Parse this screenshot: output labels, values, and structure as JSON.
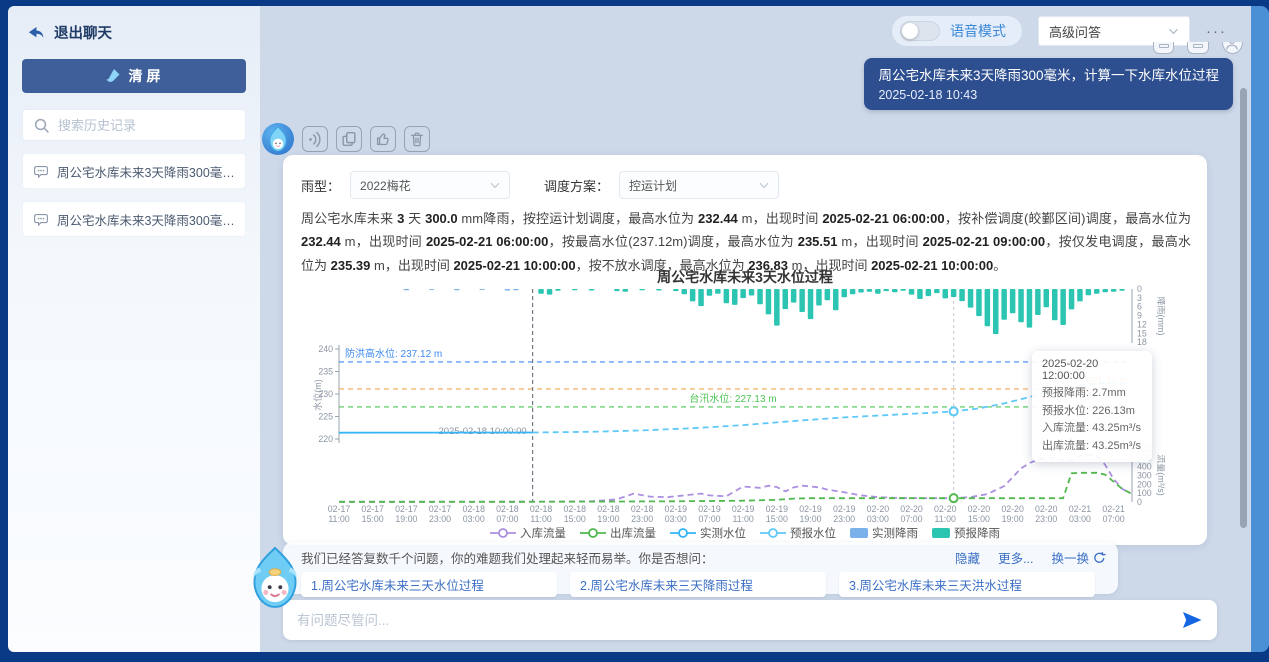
{
  "colors": {
    "frame": "#0a3a86",
    "right_strip": "#4b90d4",
    "main_bg": "#cdd9e9",
    "user_bubble": "#2d4e8f",
    "clear_button": "#3f5f9a",
    "link_blue": "#3b6fc4",
    "voice_label_blue": "#3a87d8",
    "send_blue": "#1565e0"
  },
  "sidebar": {
    "exit_label": "退出聊天",
    "clear_button": "清屏",
    "search_placeholder": "搜索历史记录",
    "history": [
      "周公宅水库未来3天降雨300毫米，...",
      "周公宅水库未来3天降雨300毫米，..."
    ]
  },
  "topbar": {
    "voice_label": "语音模式",
    "mode_select": "高级问答",
    "more": "···"
  },
  "user_message": {
    "text": "周公宅水库未来3天降雨300毫米，计算一下水库水位过程",
    "time": "2025-02-18 10:43"
  },
  "answer": {
    "rain_type_label": "雨型：",
    "rain_type_value": "2022梅花",
    "plan_label": "调度方案：",
    "plan_value": "控运计划",
    "paragraph": [
      {
        "t": "周公宅水库未来 ",
        "b": false
      },
      {
        "t": "3",
        "b": true
      },
      {
        "t": " 天 ",
        "b": false
      },
      {
        "t": "300.0",
        "b": true
      },
      {
        "t": " mm降雨，按控运计划调度，最高水位为 ",
        "b": false
      },
      {
        "t": "232.44",
        "b": true
      },
      {
        "t": " m，出现时间 ",
        "b": false
      },
      {
        "t": "2025-02-21 06:00:00",
        "b": true
      },
      {
        "t": "，按补偿调度(皎鄞区间)调度，最高水位为 ",
        "b": false
      },
      {
        "t": "232.44",
        "b": true
      },
      {
        "t": " m，出现时间 ",
        "b": false
      },
      {
        "t": "2025-02-21 06:00:00",
        "b": true
      },
      {
        "t": "，按最高水位(237.12m)调度，最高水位为 ",
        "b": false
      },
      {
        "t": "235.51",
        "b": true
      },
      {
        "t": " m，出现时间 ",
        "b": false
      },
      {
        "t": "2025-02-21 09:00:00",
        "b": true
      },
      {
        "t": "，按仅发电调度，最高水位为 ",
        "b": false
      },
      {
        "t": "235.39",
        "b": true
      },
      {
        "t": " m，出现时间 ",
        "b": false
      },
      {
        "t": "2025-02-21 10:00:00",
        "b": true
      },
      {
        "t": "，按不放水调度，最高水位为 ",
        "b": false
      },
      {
        "t": "236.83",
        "b": true
      },
      {
        "t": " m，出现时间 ",
        "b": false
      },
      {
        "t": "2025-02-21 10:00:00",
        "b": true
      },
      {
        "t": "。",
        "b": false
      }
    ]
  },
  "tooltip": {
    "title": "2025-02-20 12:00:00",
    "rows": [
      "预报降雨: 2.7mm",
      "预报水位: 226.13m",
      "入库流量: 43.25m³/s",
      "出库流量: 43.25m³/s"
    ]
  },
  "suggestions": {
    "header": "我们已经答复数千个问题，你的难题我们处理起来轻而易举。你是否想问：",
    "links": {
      "hide": "隐藏",
      "more": "更多...",
      "swap": "换一换"
    },
    "items": [
      "1.周公宅水库未来三天水位过程",
      "2.周公宅水库未来三天降雨过程",
      "3.周公宅水库未来三天洪水过程"
    ]
  },
  "input": {
    "placeholder": "有问题尽管问..."
  },
  "chart_data": {
    "type": "mixed",
    "title": "周公宅水库未来3天水位过程",
    "x_hours_domain": [
      0,
      94
    ],
    "x_ticks": [
      "02-17 11:00",
      "02-17 15:00",
      "02-17 19:00",
      "02-17 23:00",
      "02-18 03:00",
      "02-18 07:00",
      "02-18 11:00",
      "02-18 15:00",
      "02-18 19:00",
      "02-18 23:00",
      "02-19 03:00",
      "02-19 07:00",
      "02-19 11:00",
      "02-19 15:00",
      "02-19 19:00",
      "02-19 23:00",
      "02-20 03:00",
      "02-20 07:00",
      "02-20 11:00",
      "02-20 15:00",
      "02-20 19:00",
      "02-20 23:00",
      "02-21 03:00",
      "02-21 07:00"
    ],
    "axes": {
      "level": {
        "label": "水位(m)",
        "min": 220,
        "max": 240,
        "ticks": [
          240,
          235,
          230,
          225,
          220
        ]
      },
      "rain": {
        "label": "降雨(mm)",
        "min": 0,
        "max": 18,
        "ticks": [
          0,
          3,
          6,
          9,
          12,
          15,
          18
        ]
      },
      "flow": {
        "label": "流量(m³/s)",
        "min": 0,
        "max": 600,
        "ticks": [
          600,
          500,
          400,
          300,
          200,
          100,
          0
        ]
      }
    },
    "now_marker": {
      "t": 23,
      "label": "2025-02-18 10:00:00"
    },
    "ref_lines": [
      {
        "value": 237.12,
        "label": "防洪高水位: 237.12 m",
        "color": "#3d8af2",
        "pos": "left"
      },
      {
        "value": 231.13,
        "label": "231.13 m",
        "color": "#f2a654",
        "pos": "right"
      },
      {
        "value": 227.13,
        "label": "台汛水位: 227.13 m",
        "color": "#4cc455",
        "pos": "center"
      }
    ],
    "highlight": {
      "t": 73,
      "level": 226.13,
      "flow": 43.25
    },
    "legend_order": [
      "inflow",
      "outflow",
      "observed_level",
      "forecast_level",
      "observed_rain",
      "forecast_rain"
    ],
    "series": {
      "inflow": {
        "name": "入库流量",
        "color": "#ab8fe0",
        "axis": "flow",
        "style": "dashed",
        "points": [
          [
            0,
            2
          ],
          [
            10,
            2
          ],
          [
            20,
            3
          ],
          [
            26,
            4
          ],
          [
            30,
            8
          ],
          [
            33,
            30
          ],
          [
            35,
            95
          ],
          [
            37,
            60
          ],
          [
            39,
            55
          ],
          [
            41,
            75
          ],
          [
            43,
            95
          ],
          [
            44,
            75
          ],
          [
            46,
            65
          ],
          [
            47,
            120
          ],
          [
            48,
            175
          ],
          [
            50,
            160
          ],
          [
            51,
            185
          ],
          [
            52,
            170
          ],
          [
            53,
            120
          ],
          [
            54,
            165
          ],
          [
            55,
            185
          ],
          [
            56,
            175
          ],
          [
            57,
            165
          ],
          [
            58,
            140
          ],
          [
            60,
            110
          ],
          [
            62,
            75
          ],
          [
            64,
            55
          ],
          [
            66,
            48
          ],
          [
            68,
            44
          ],
          [
            70,
            43
          ],
          [
            73,
            43
          ],
          [
            75,
            55
          ],
          [
            77,
            90
          ],
          [
            79,
            180
          ],
          [
            80,
            280
          ],
          [
            81,
            380
          ],
          [
            82,
            440
          ],
          [
            83,
            480
          ],
          [
            84,
            500
          ],
          [
            85,
            495
          ],
          [
            86,
            470
          ],
          [
            87,
            465
          ],
          [
            88,
            520
          ],
          [
            89,
            535
          ],
          [
            90,
            530
          ],
          [
            91,
            420
          ],
          [
            92,
            260
          ],
          [
            93,
            150
          ],
          [
            94,
            100
          ]
        ]
      },
      "outflow": {
        "name": "出库流量",
        "color": "#51b84e",
        "axis": "flow",
        "style": "dashed",
        "points": [
          [
            0,
            2
          ],
          [
            23,
            2
          ],
          [
            30,
            4
          ],
          [
            40,
            8
          ],
          [
            48,
            15
          ],
          [
            52,
            25
          ],
          [
            54,
            38
          ],
          [
            56,
            43
          ],
          [
            60,
            43
          ],
          [
            70,
            43
          ],
          [
            73,
            43
          ],
          [
            80,
            43
          ],
          [
            86,
            43
          ],
          [
            87,
            325
          ],
          [
            88,
            330
          ],
          [
            90,
            330
          ],
          [
            91,
            310
          ],
          [
            92,
            230
          ],
          [
            93,
            150
          ],
          [
            94,
            100
          ]
        ]
      },
      "observed_level": {
        "name": "实测水位",
        "color": "#35b5f5",
        "axis": "level",
        "style": "solid",
        "points": [
          [
            0,
            221.4
          ],
          [
            12,
            221.42
          ],
          [
            23,
            221.45
          ]
        ]
      },
      "forecast_level": {
        "name": "预报水位",
        "color": "#5ec8f8",
        "axis": "level",
        "style": "dashed",
        "points": [
          [
            23,
            221.45
          ],
          [
            30,
            221.6
          ],
          [
            36,
            221.9
          ],
          [
            42,
            222.4
          ],
          [
            48,
            223.1
          ],
          [
            54,
            224.0
          ],
          [
            60,
            224.8
          ],
          [
            66,
            225.4
          ],
          [
            70,
            225.8
          ],
          [
            73,
            226.13
          ],
          [
            76,
            226.8
          ],
          [
            79,
            227.9
          ],
          [
            82,
            229.3
          ],
          [
            85,
            230.8
          ],
          [
            88,
            231.9
          ],
          [
            91,
            232.44
          ],
          [
            94,
            232.35
          ]
        ]
      },
      "observed_rain": {
        "name": "实测降雨",
        "color": "#7ab1ea",
        "axis": "rain",
        "bars": [
          [
            8,
            0.4
          ],
          [
            11,
            0.3
          ],
          [
            14,
            0.4
          ],
          [
            17,
            0.3
          ],
          [
            20,
            0.5
          ],
          [
            21,
            0.4
          ]
        ]
      },
      "forecast_rain": {
        "name": "预报降雨",
        "color": "#2cc5b2",
        "axis": "rain",
        "bars": [
          [
            24,
            1.6
          ],
          [
            25,
            1.9
          ],
          [
            26,
            0.6
          ],
          [
            28,
            0.4
          ],
          [
            30,
            0.5
          ],
          [
            33,
            0.7
          ],
          [
            34,
            0.9
          ],
          [
            36,
            0.4
          ],
          [
            38,
            0.5
          ],
          [
            40,
            0.7
          ],
          [
            41,
            1.8
          ],
          [
            42,
            4.2
          ],
          [
            43,
            5.8
          ],
          [
            44,
            2.3
          ],
          [
            45,
            1.6
          ],
          [
            46,
            4.8
          ],
          [
            47,
            5.4
          ],
          [
            48,
            3.1
          ],
          [
            49,
            2.2
          ],
          [
            50,
            5.2
          ],
          [
            51,
            8.6
          ],
          [
            52,
            12.4
          ],
          [
            53,
            6.8
          ],
          [
            54,
            4.6
          ],
          [
            55,
            7.8
          ],
          [
            56,
            10.2
          ],
          [
            57,
            5.6
          ],
          [
            58,
            3.8
          ],
          [
            59,
            7.2
          ],
          [
            60,
            2.8
          ],
          [
            61,
            1.8
          ],
          [
            62,
            1.2
          ],
          [
            63,
            0.9
          ],
          [
            64,
            1.6
          ],
          [
            65,
            0.7
          ],
          [
            66,
            1.1
          ],
          [
            67,
            0.6
          ],
          [
            68,
            1.9
          ],
          [
            69,
            3.4
          ],
          [
            70,
            2.4
          ],
          [
            71,
            1.4
          ],
          [
            72,
            3.2
          ],
          [
            73,
            2.7
          ],
          [
            74,
            4.1
          ],
          [
            75,
            6.3
          ],
          [
            76,
            9.2
          ],
          [
            77,
            12.6
          ],
          [
            78,
            15.3
          ],
          [
            79,
            10.4
          ],
          [
            80,
            8.2
          ],
          [
            81,
            11.3
          ],
          [
            82,
            13.1
          ],
          [
            83,
            8.8
          ],
          [
            84,
            6.2
          ],
          [
            85,
            10.6
          ],
          [
            86,
            12.2
          ],
          [
            87,
            6.9
          ],
          [
            88,
            4.2
          ],
          [
            89,
            2.1
          ],
          [
            90,
            1.6
          ],
          [
            91,
            1.1
          ],
          [
            92,
            0.9
          ],
          [
            93,
            0.6
          ]
        ]
      }
    }
  }
}
